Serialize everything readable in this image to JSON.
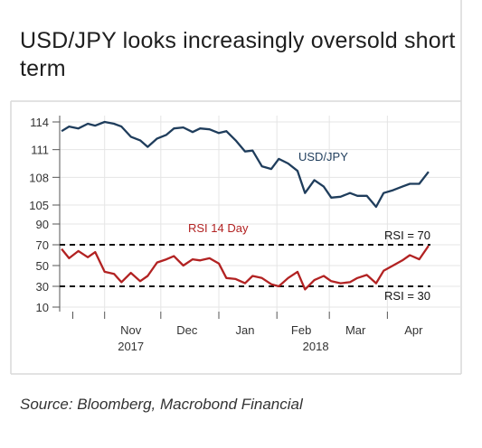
{
  "title": "USD/JPY looks increasingly oversold short term",
  "source": "Source: Bloomberg, Macrobond Financial",
  "colors": {
    "usdjpy": "#1f3d5c",
    "rsi": "#b22222",
    "grid": "#e5e5e5",
    "frame": "#d9d9d9"
  },
  "chart_data": [
    {
      "type": "line",
      "panel": "upper",
      "ylim": [
        104.5,
        115
      ],
      "yticks": [
        "114",
        "111",
        "108",
        "105"
      ],
      "x_ticks": [
        "Nov",
        "Dec",
        "Jan",
        "Feb",
        "Mar",
        "Apr"
      ],
      "x_year_labels": [
        "2017",
        "2018"
      ],
      "x_dates": [
        "2017-10-09",
        "2017-10-13",
        "2017-10-18",
        "2017-10-23",
        "2017-10-27",
        "2017-11-01",
        "2017-11-06",
        "2017-11-10",
        "2017-11-15",
        "2017-11-20",
        "2017-11-24",
        "2017-11-29",
        "2017-12-04",
        "2017-12-08",
        "2017-12-13",
        "2017-12-18",
        "2017-12-22",
        "2017-12-27",
        "2018-01-01",
        "2018-01-05",
        "2018-01-10",
        "2018-01-15",
        "2018-01-19",
        "2018-01-24",
        "2018-01-29",
        "2018-02-02",
        "2018-02-07",
        "2018-02-12",
        "2018-02-16",
        "2018-02-21",
        "2018-02-26",
        "2018-03-02",
        "2018-03-07",
        "2018-03-12",
        "2018-03-16",
        "2018-03-21",
        "2018-03-26",
        "2018-03-30",
        "2018-04-04",
        "2018-04-09",
        "2018-04-13",
        "2018-04-18",
        "2018-04-23"
      ],
      "series": [
        {
          "name": "USD/JPY",
          "values": [
            113.0,
            113.5,
            113.3,
            113.8,
            113.6,
            114.0,
            113.8,
            113.5,
            112.4,
            112.0,
            111.3,
            112.2,
            112.6,
            113.3,
            113.4,
            112.9,
            113.3,
            113.2,
            112.8,
            113.0,
            112.0,
            110.8,
            110.9,
            109.2,
            108.9,
            110.0,
            109.5,
            108.7,
            106.3,
            107.7,
            107.0,
            105.8,
            105.9,
            106.3,
            106.0,
            106.0,
            104.8,
            106.3,
            106.6,
            107.0,
            107.3,
            107.3,
            108.6
          ]
        }
      ]
    },
    {
      "type": "line",
      "panel": "lower",
      "ylim": [
        10,
        90
      ],
      "yticks": [
        "90",
        "70",
        "50",
        "30",
        "10"
      ],
      "x_dates": [
        "2017-10-09",
        "2017-10-13",
        "2017-10-18",
        "2017-10-23",
        "2017-10-27",
        "2017-11-01",
        "2017-11-06",
        "2017-11-10",
        "2017-11-15",
        "2017-11-20",
        "2017-11-24",
        "2017-11-29",
        "2017-12-04",
        "2017-12-08",
        "2017-12-13",
        "2017-12-18",
        "2017-12-22",
        "2017-12-27",
        "2018-01-01",
        "2018-01-05",
        "2018-01-10",
        "2018-01-15",
        "2018-01-19",
        "2018-01-24",
        "2018-01-29",
        "2018-02-02",
        "2018-02-07",
        "2018-02-12",
        "2018-02-16",
        "2018-02-21",
        "2018-02-26",
        "2018-03-02",
        "2018-03-07",
        "2018-03-12",
        "2018-03-16",
        "2018-03-21",
        "2018-03-26",
        "2018-03-30",
        "2018-04-04",
        "2018-04-09",
        "2018-04-13",
        "2018-04-18",
        "2018-04-23"
      ],
      "series": [
        {
          "name": "RSI 14 Day",
          "values": [
            66,
            57,
            64,
            58,
            63,
            44,
            42,
            34,
            43,
            35,
            40,
            53,
            56,
            59,
            50,
            56,
            55,
            57,
            52,
            38,
            37,
            33,
            40,
            38,
            32,
            30,
            38,
            44,
            27,
            36,
            40,
            35,
            33,
            34,
            38,
            41,
            33,
            45,
            50,
            55,
            60,
            56,
            69
          ]
        }
      ],
      "reference_lines": [
        {
          "label": "RSI = 70",
          "value": 70
        },
        {
          "label": "RSI = 30",
          "value": 30
        }
      ]
    }
  ]
}
